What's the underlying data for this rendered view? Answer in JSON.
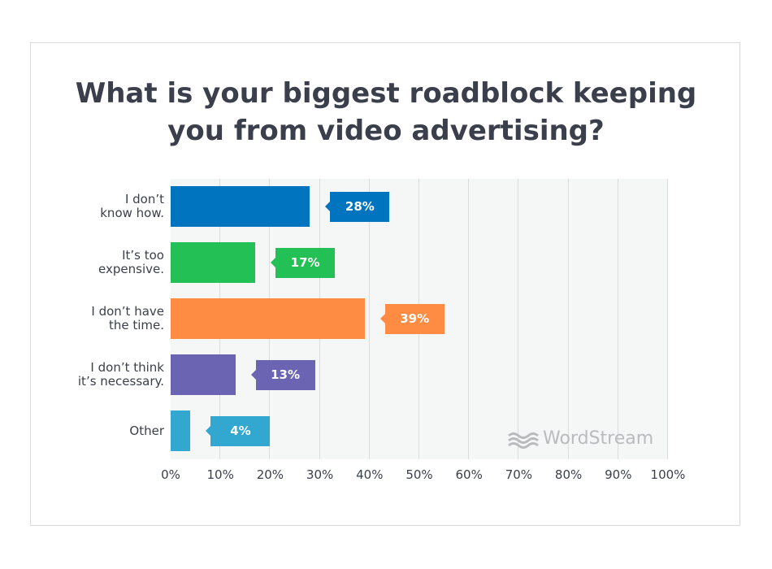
{
  "chart_data": {
    "type": "bar",
    "orientation": "horizontal",
    "title": "What is your biggest roadblock keeping you from video advertising?",
    "categories": [
      "I don’t\nknow how.",
      "It’s too\nexpensive.",
      "I don’t have\nthe time.",
      "I don’t think\nit’s necessary.",
      "Other"
    ],
    "values": [
      28,
      17,
      39,
      13,
      4
    ],
    "value_labels": [
      "28%",
      "17%",
      "39%",
      "13%",
      "4%"
    ],
    "colors": [
      "#0074bf",
      "#22c055",
      "#ff8c42",
      "#6a64b3",
      "#32a8d0"
    ],
    "xlim": [
      0,
      100
    ],
    "xticks": [
      {
        "value": 0,
        "label": "0%"
      },
      {
        "value": 10,
        "label": "10%"
      },
      {
        "value": 20,
        "label": "20%"
      },
      {
        "value": 30,
        "label": "30%"
      },
      {
        "value": 40,
        "label": "40%"
      },
      {
        "value": 50,
        "label": "50%"
      },
      {
        "value": 60,
        "label": "60%"
      },
      {
        "value": 70,
        "label": "70%"
      },
      {
        "value": 80,
        "label": "80%"
      },
      {
        "value": 90,
        "label": "90%"
      },
      {
        "value": 100,
        "label": "100%"
      }
    ],
    "grid": true,
    "watermark": "WordStream"
  }
}
